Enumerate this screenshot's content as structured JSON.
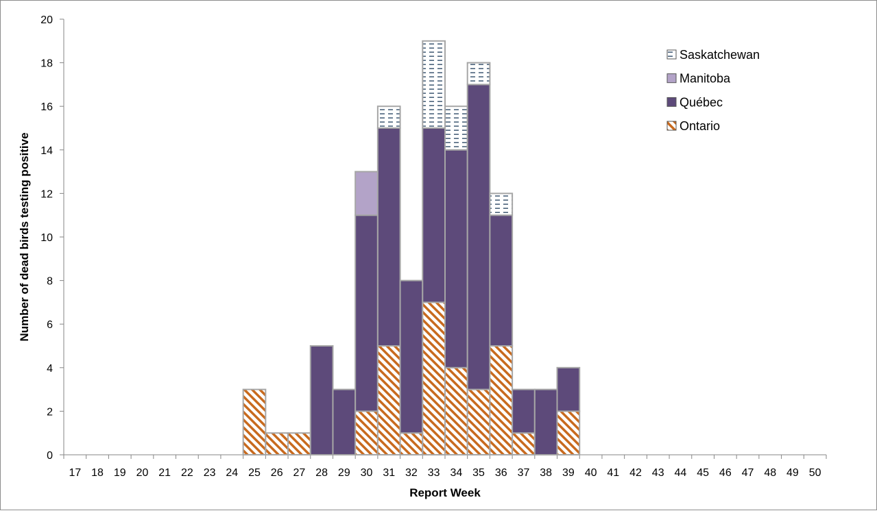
{
  "chart_data": {
    "type": "bar",
    "stacked": true,
    "xlabel": "Report Week",
    "ylabel": "Number of dead birds testing positive",
    "ylim": [
      0,
      20
    ],
    "yticks": [
      0,
      2,
      4,
      6,
      8,
      10,
      12,
      14,
      16,
      18,
      20
    ],
    "categories": [
      "17",
      "18",
      "19",
      "20",
      "21",
      "22",
      "23",
      "24",
      "25",
      "26",
      "27",
      "28",
      "29",
      "30",
      "31",
      "32",
      "33",
      "34",
      "35",
      "36",
      "37",
      "38",
      "39",
      "40",
      "41",
      "42",
      "43",
      "44",
      "45",
      "46",
      "47",
      "48",
      "49",
      "50"
    ],
    "series": [
      {
        "name": "Ontario",
        "color": "#c86a1e",
        "pattern": "diagonal-hatch",
        "values": [
          0,
          0,
          0,
          0,
          0,
          0,
          0,
          0,
          3,
          1,
          1,
          0,
          0,
          2,
          5,
          1,
          7,
          4,
          3,
          5,
          1,
          0,
          2,
          0,
          0,
          0,
          0,
          0,
          0,
          0,
          0,
          0,
          0,
          0
        ]
      },
      {
        "name": "Québec",
        "color": "#5d4a7a",
        "pattern": "solid",
        "values": [
          0,
          0,
          0,
          0,
          0,
          0,
          0,
          0,
          0,
          0,
          0,
          5,
          3,
          9,
          10,
          7,
          8,
          10,
          14,
          6,
          2,
          3,
          2,
          0,
          0,
          0,
          0,
          0,
          0,
          0,
          0,
          0,
          0,
          0
        ]
      },
      {
        "name": "Manitoba",
        "color": "#b3a3c8",
        "pattern": "solid",
        "values": [
          0,
          0,
          0,
          0,
          0,
          0,
          0,
          0,
          0,
          0,
          0,
          0,
          0,
          2,
          0,
          0,
          0,
          0,
          0,
          0,
          0,
          0,
          0,
          0,
          0,
          0,
          0,
          0,
          0,
          0,
          0,
          0,
          0,
          0
        ]
      },
      {
        "name": "Saskatchewan",
        "color": "#1f3d5c",
        "pattern": "dashed-lines",
        "values": [
          0,
          0,
          0,
          0,
          0,
          0,
          0,
          0,
          0,
          0,
          0,
          0,
          0,
          0,
          1,
          0,
          4,
          2,
          1,
          1,
          0,
          0,
          0,
          0,
          0,
          0,
          0,
          0,
          0,
          0,
          0,
          0,
          0,
          0
        ]
      }
    ],
    "legend": {
      "position": "top-right",
      "order": [
        "Saskatchewan",
        "Manitoba",
        "Québec",
        "Ontario"
      ]
    },
    "grid": false
  }
}
